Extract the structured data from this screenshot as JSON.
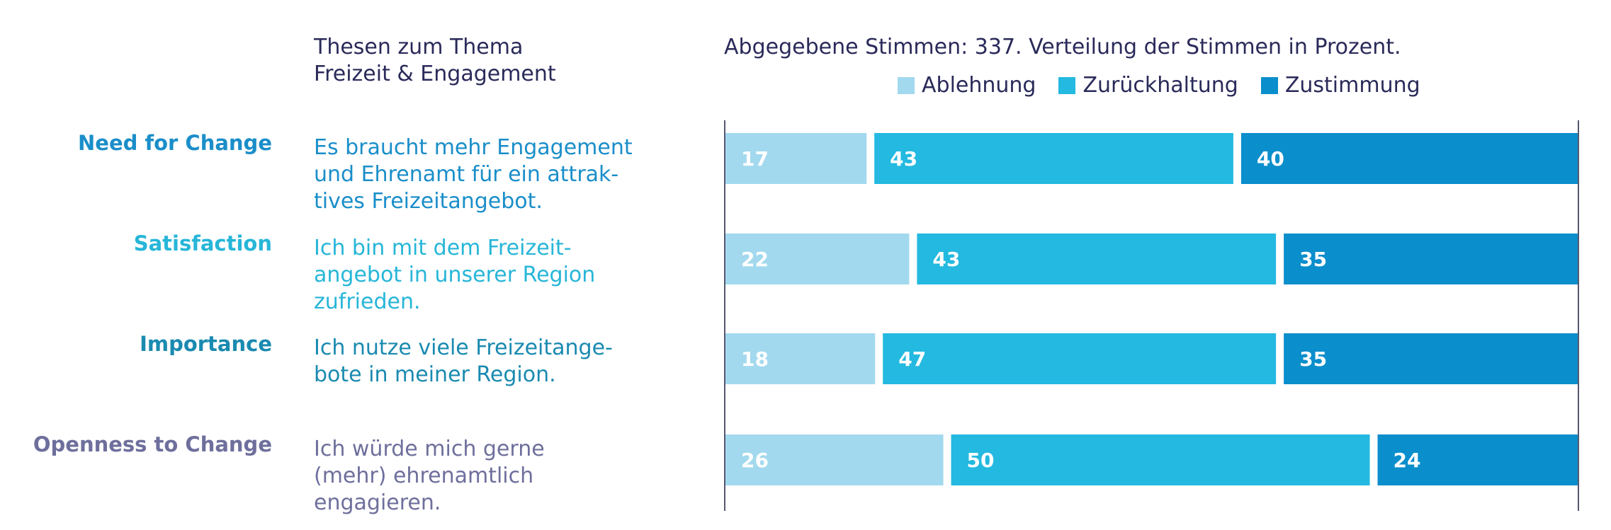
{
  "heading": {
    "line1": "Thesen zum Thema",
    "line2": "Freizeit & Engagement"
  },
  "colors": {
    "ablehnung": "#a2d9ee",
    "zurueckhaltung": "#23b9e0",
    "zustimmung": "#0a8ecc",
    "need_for_change": "#1a8ec9",
    "satisfaction": "#27b6d8",
    "importance": "#1a8ab0",
    "openness": "#6e6f9c",
    "axis": "#55576e"
  },
  "rows": [
    {
      "label": "Need for Change",
      "text_lines": [
        "Es braucht mehr Engagement",
        "und Ehrenamt für ein attrak-",
        "tives Freizeitangebot."
      ]
    },
    {
      "label": "Satisfaction",
      "text_lines": [
        "Ich bin mit dem Freizeit-",
        "angebot in unserer Region",
        "zufrieden."
      ]
    },
    {
      "label": "Importance",
      "text_lines": [
        "Ich nutze viele Freizeitange-",
        "bote in meiner Region."
      ]
    },
    {
      "label": "Openness to Change",
      "text_lines": [
        "Ich würde mich gerne",
        "(mehr) ehrenamtlich",
        "engagieren."
      ]
    }
  ],
  "chart_data": {
    "type": "bar",
    "orientation": "horizontal",
    "stacked": true,
    "title": "Abgegebene Stimmen: 337. Verteilung der Stimmen in Prozent.",
    "categories": [
      "Need for Change",
      "Satisfaction",
      "Importance",
      "Openness to Change"
    ],
    "series": [
      {
        "name": "Ablehnung",
        "values": [
          17,
          22,
          18,
          26
        ]
      },
      {
        "name": "Zurückhaltung",
        "values": [
          43,
          43,
          47,
          50
        ]
      },
      {
        "name": "Zustimmung",
        "values": [
          40,
          35,
          35,
          24
        ]
      }
    ],
    "xlim": [
      0,
      100
    ],
    "legend": "top"
  }
}
